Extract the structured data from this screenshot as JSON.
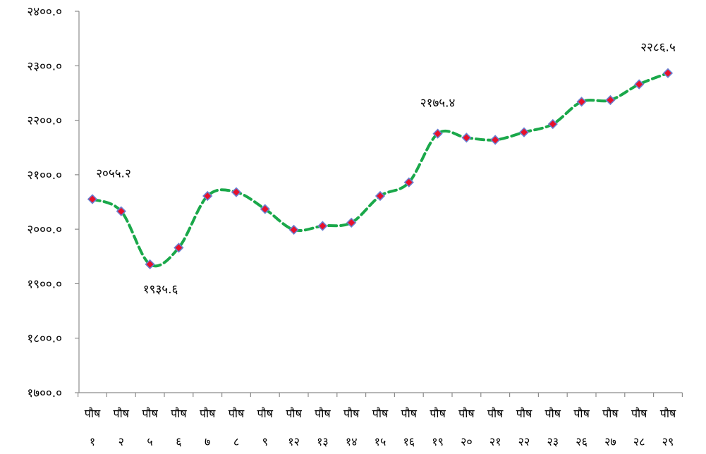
{
  "chart_data": {
    "type": "line",
    "title": "",
    "xlabel": "",
    "ylabel": "",
    "ylim": [
      1700,
      2400
    ],
    "y_ticks": [
      1700,
      1800,
      1900,
      2000,
      2100,
      2200,
      2300,
      2400
    ],
    "y_tick_labels": [
      "१७००.०",
      "१८००.०",
      "१९००.०",
      "२०००.०",
      "२१००.०",
      "२२००.०",
      "२३००.०",
      "२४००.०"
    ],
    "categories": [
      [
        "पौष",
        "१"
      ],
      [
        "पौष",
        "२"
      ],
      [
        "पौष",
        "५"
      ],
      [
        "पौष",
        "६"
      ],
      [
        "पौष",
        "७"
      ],
      [
        "पौष",
        "८"
      ],
      [
        "पौष",
        "९"
      ],
      [
        "पौष",
        "१२"
      ],
      [
        "पौष",
        "१३"
      ],
      [
        "पौष",
        "१४"
      ],
      [
        "पौष",
        "१५"
      ],
      [
        "पौष",
        "१६"
      ],
      [
        "पौष",
        "१९"
      ],
      [
        "पौष",
        "२०"
      ],
      [
        "पौष",
        "२१"
      ],
      [
        "पौष",
        "२२"
      ],
      [
        "पौष",
        "२३"
      ],
      [
        "पौष",
        "२६"
      ],
      [
        "पौष",
        "२७"
      ],
      [
        "पौष",
        "२८"
      ],
      [
        "पौष",
        "२९"
      ]
    ],
    "series": [
      {
        "values": [
          2055.2,
          2033,
          1935.6,
          1966,
          2061,
          2068,
          2037,
          1999,
          2006,
          2012,
          2061,
          2086,
          2175.4,
          2168,
          2164,
          2178,
          2193,
          2234,
          2237,
          2266,
          2286.5
        ],
        "line_color": "#1aa84a",
        "line_style": "dashed",
        "marker_fill": "#e8102a",
        "marker_stroke": "#6b7fd1",
        "marker": "diamond"
      }
    ],
    "annotations": [
      {
        "index": 0,
        "text": "२०५५.२",
        "position": "above"
      },
      {
        "index": 2,
        "text": "१९३५.६",
        "position": "below"
      },
      {
        "index": 12,
        "text": "२१७५.४",
        "position": "above"
      },
      {
        "index": 20,
        "text": "२२८६.५",
        "position": "above"
      }
    ],
    "grid": false,
    "legend": "none"
  }
}
